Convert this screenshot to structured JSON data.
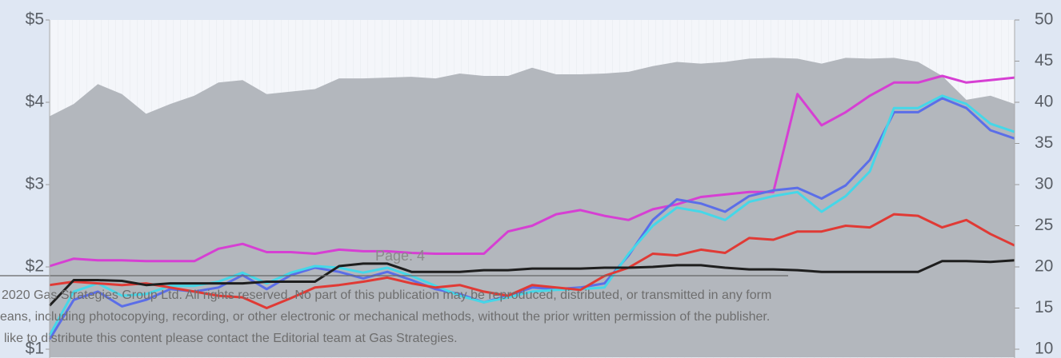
{
  "chart_data": {
    "type": "line",
    "ylim": [
      0.9,
      5
    ],
    "yticks": [
      {
        "value": 1,
        "label": "$1"
      },
      {
        "value": 2,
        "label": "$2"
      },
      {
        "value": 3,
        "label": "$3"
      },
      {
        "value": 4,
        "label": "$4"
      },
      {
        "value": 5,
        "label": "$5"
      }
    ],
    "y2lim": [
      9,
      50
    ],
    "y2ticks": [
      10,
      15,
      20,
      25,
      30,
      35,
      40,
      45,
      50
    ],
    "series": [
      {
        "type": "area",
        "axis": "y2",
        "color": "#b3b7bd",
        "values": [
          38.3,
          39.8,
          42.2,
          41,
          38.6,
          39.8,
          40.8,
          42.4,
          42.7,
          41,
          41.3,
          41.6,
          42.9,
          42.9,
          43,
          43.1,
          42.9,
          43.5,
          43.2,
          43.2,
          44.2,
          43.4,
          43.4,
          43.5,
          43.7,
          44.4,
          44.9,
          44.7,
          44.9,
          45.3,
          45.4,
          45.3,
          44.7,
          45.4,
          45.3,
          45.4,
          44.9,
          43.2,
          40.3,
          40.8,
          39.8
        ]
      },
      {
        "color": "#d63fd3",
        "values": [
          2.01,
          2.1,
          2.08,
          2.08,
          2.07,
          2.07,
          2.07,
          2.22,
          2.28,
          2.18,
          2.18,
          2.16,
          2.21,
          2.19,
          2.19,
          2.17,
          2.16,
          2.16,
          2.16,
          2.43,
          2.5,
          2.64,
          2.69,
          2.62,
          2.57,
          2.7,
          2.76,
          2.85,
          2.88,
          2.91,
          2.91,
          4.1,
          3.72,
          3.88,
          4.08,
          4.24,
          4.24,
          4.32,
          4.24,
          4.27,
          4.3
        ]
      },
      {
        "color": "#5b6ee8",
        "values": [
          1.12,
          1.6,
          1.7,
          1.52,
          1.6,
          1.73,
          1.7,
          1.75,
          1.9,
          1.73,
          1.9,
          1.99,
          1.94,
          1.86,
          1.94,
          1.84,
          1.73,
          1.67,
          1.57,
          1.65,
          1.75,
          1.73,
          1.75,
          1.8,
          2.14,
          2.57,
          2.82,
          2.77,
          2.67,
          2.86,
          2.93,
          2.96,
          2.83,
          2.99,
          3.3,
          3.88,
          3.88,
          4.05,
          3.93,
          3.66,
          3.56
        ]
      },
      {
        "color": "#45d7e8",
        "values": [
          1.17,
          1.7,
          1.8,
          1.65,
          1.67,
          1.77,
          1.77,
          1.82,
          1.93,
          1.8,
          1.93,
          2.01,
          1.99,
          1.93,
          1.99,
          1.89,
          1.77,
          1.65,
          1.57,
          1.63,
          1.7,
          1.72,
          1.73,
          1.75,
          2.16,
          2.5,
          2.72,
          2.67,
          2.57,
          2.79,
          2.86,
          2.91,
          2.67,
          2.86,
          3.16,
          3.93,
          3.93,
          4.08,
          3.98,
          3.74,
          3.64
        ]
      },
      {
        "color": "#e03a35",
        "values": [
          1.78,
          1.82,
          1.8,
          1.78,
          1.8,
          1.75,
          1.7,
          1.65,
          1.63,
          1.5,
          1.62,
          1.75,
          1.78,
          1.82,
          1.87,
          1.8,
          1.75,
          1.78,
          1.7,
          1.65,
          1.78,
          1.75,
          1.72,
          1.89,
          1.99,
          2.16,
          2.14,
          2.21,
          2.17,
          2.35,
          2.33,
          2.43,
          2.43,
          2.5,
          2.48,
          2.64,
          2.62,
          2.48,
          2.57,
          2.4,
          2.26
        ]
      },
      {
        "color": "#1e1e1e",
        "values": [
          1.53,
          1.84,
          1.84,
          1.83,
          1.78,
          1.8,
          1.8,
          1.8,
          1.8,
          1.82,
          1.82,
          1.82,
          2.01,
          2.04,
          2.04,
          1.94,
          1.94,
          1.94,
          1.96,
          1.96,
          1.98,
          1.98,
          1.98,
          1.99,
          1.99,
          2,
          2.02,
          2.02,
          1.99,
          1.97,
          1.97,
          1.96,
          1.94,
          1.94,
          1.94,
          1.94,
          1.94,
          2.07,
          2.07,
          2.06,
          2.08
        ]
      }
    ]
  },
  "page_label": "Page: 4",
  "footer_lines": [
    "2020 Gas Strategies Group Ltd. All rights reserved. No part of this publication may be reproduced, distributed, or transmitted in any form",
    "eans, including photocopying, recording, or other electronic or mechanical methods, without the prior written permission of the publisher.",
    "like to distribute this content please contact the Editorial team at Gas Strategies."
  ]
}
